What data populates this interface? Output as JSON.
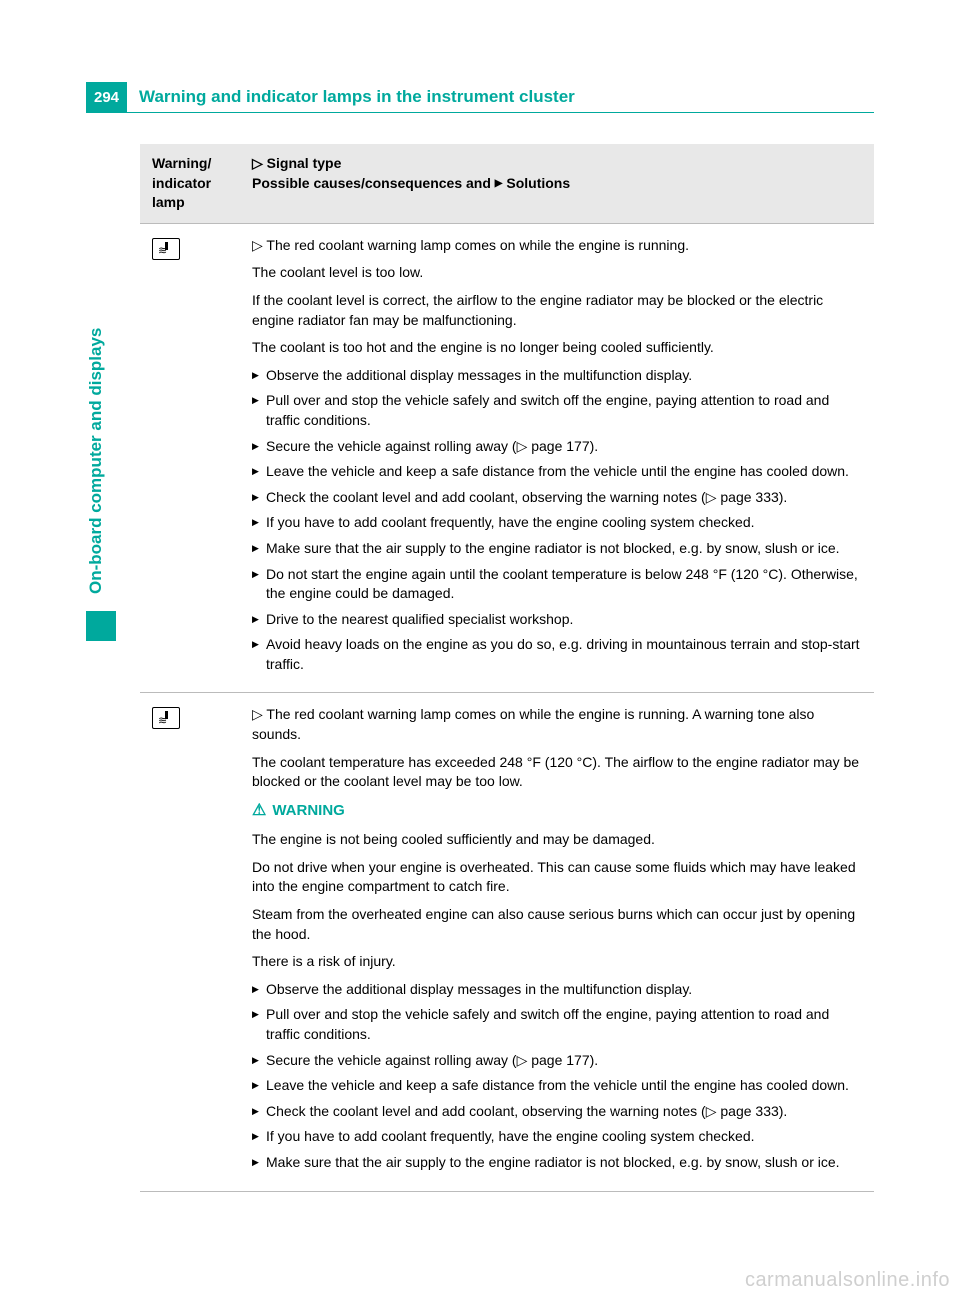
{
  "page": {
    "number": "294",
    "title": "Warning and indicator lamps in the instrument cluster",
    "side_tab": "On-board computer and displays"
  },
  "table": {
    "header": {
      "col1": "Warning/\nindicator\nlamp",
      "col2_line1_prefix": "▷",
      "col2_line1": "Signal type",
      "col2_line2_a": "Possible causes/consequences and ",
      "col2_line2_b": "▶",
      "col2_line2_c": " Solutions"
    },
    "rows": [
      {
        "signal_prefix": "▷",
        "signal": " The red coolant warning lamp comes on while the engine is running.",
        "paras": [
          "The coolant level is too low.",
          "If the coolant level is correct, the airflow to the engine radiator may be blocked or the electric engine radiator fan may be malfunctioning.",
          "The coolant is too hot and the engine is no longer being cooled sufficiently."
        ],
        "warning": null,
        "steps": [
          "Observe the additional display messages in the multifunction display.",
          "Pull over and stop the vehicle safely and switch off the engine, paying attention to road and traffic conditions.",
          "Secure the vehicle against rolling away (▷ page 177).",
          "Leave the vehicle and keep a safe distance from the vehicle until the engine has cooled down.",
          "Check the coolant level and add coolant, observing the warning notes (▷ page 333).",
          "If you have to add coolant frequently, have the engine cooling system checked.",
          "Make sure that the air supply to the engine radiator is not blocked, e.g. by snow, slush or ice.",
          "Do not start the engine again until the coolant temperature is below 248 °F (120 °C). Otherwise, the engine could be damaged.",
          "Drive to the nearest qualified specialist workshop.",
          "Avoid heavy loads on the engine as you do so, e.g. driving in mountainous terrain and stop-start traffic."
        ]
      },
      {
        "signal_prefix": "▷",
        "signal": " The red coolant warning lamp comes on while the engine is running. A warning tone also sounds.",
        "paras": [
          "The coolant temperature has exceeded 248 °F (120 °C). The airflow to the engine radiator may be blocked or the coolant level may be too low."
        ],
        "warning": {
          "heading": "WARNING",
          "paras": [
            "The engine is not being cooled sufficiently and may be damaged.",
            "Do not drive when your engine is overheated. This can cause some fluids which may have leaked into the engine compartment to catch fire.",
            "Steam from the overheated engine can also cause serious burns which can occur just by opening the hood.",
            "There is a risk of injury."
          ]
        },
        "steps": [
          "Observe the additional display messages in the multifunction display.",
          "Pull over and stop the vehicle safely and switch off the engine, paying attention to road and traffic conditions.",
          "Secure the vehicle against rolling away (▷ page 177).",
          "Leave the vehicle and keep a safe distance from the vehicle until the engine has cooled down.",
          "Check the coolant level and add coolant, observing the warning notes (▷ page 333).",
          "If you have to add coolant frequently, have the engine cooling system checked.",
          "Make sure that the air supply to the engine radiator is not blocked, e.g. by snow, slush or ice."
        ]
      }
    ]
  },
  "watermark": "carmanualsonline.info",
  "colors": {
    "accent": "#00a99d",
    "header_bg": "#e8e8e8",
    "border": "#bbbbbb",
    "watermark": "#cfcfcf"
  }
}
